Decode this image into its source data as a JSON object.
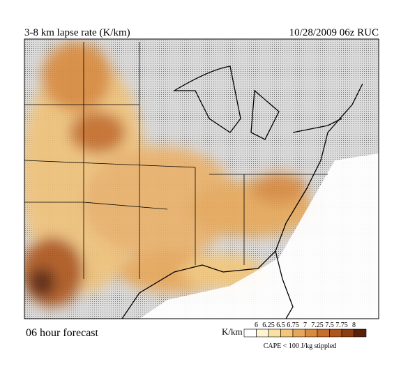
{
  "header": {
    "title": "3-8 km lapse rate (K/km)",
    "valid": "10/28/2009  06z  RUC"
  },
  "footer": {
    "forecast": "06 hour forecast"
  },
  "colorbar": {
    "unit": "K/km",
    "ticks": [
      6,
      6.25,
      6.5,
      6.75,
      7,
      7.25,
      7.5,
      7.75,
      8
    ],
    "colors": [
      "#ffffff",
      "#fef4d4",
      "#fbe0a4",
      "#f3c679",
      "#e7a75a",
      "#d88a3f",
      "#c66e2b",
      "#ae561d",
      "#8c3e12",
      "#5a2008"
    ],
    "note": "CAPE < 100 J/kg stippled"
  }
}
